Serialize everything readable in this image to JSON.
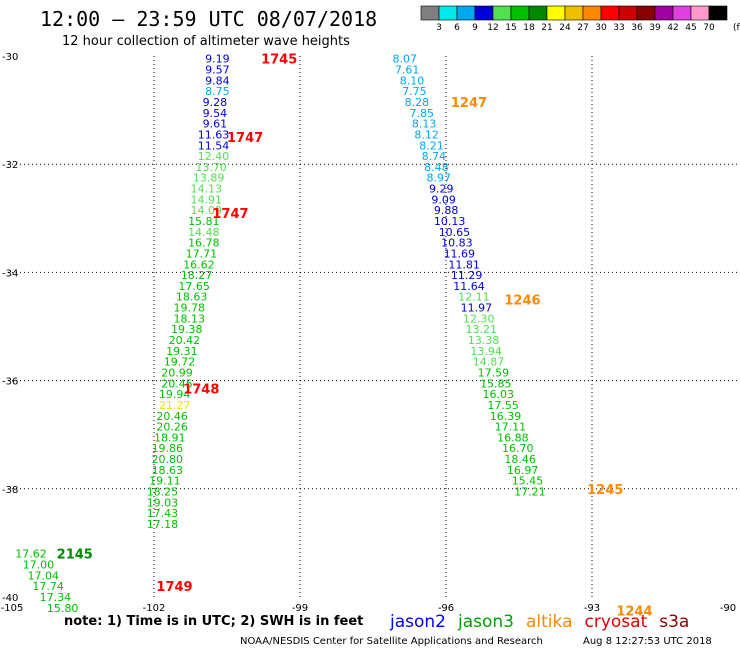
{
  "header": {
    "title": "12:00 – 23:59 UTC 08/07/2018",
    "subtitle": "12 hour collection of altimeter wave heights"
  },
  "legend": {
    "unit": "(ft)",
    "bins": [
      {
        "label": "3",
        "color": "#808080"
      },
      {
        "label": "6",
        "color": "#00e8e8"
      },
      {
        "label": "9",
        "color": "#00a8f0"
      },
      {
        "label": "12",
        "color": "#0000d8"
      },
      {
        "label": "15",
        "color": "#50e050"
      },
      {
        "label": "18",
        "color": "#00c000"
      },
      {
        "label": "21",
        "color": "#008800"
      },
      {
        "label": "24",
        "color": "#ffff00"
      },
      {
        "label": "27",
        "color": "#f0c000"
      },
      {
        "label": "30",
        "color": "#ff8800"
      },
      {
        "label": "33",
        "color": "#ff0000"
      },
      {
        "label": "36",
        "color": "#cc0000"
      },
      {
        "label": "39",
        "color": "#880000"
      },
      {
        "label": "42",
        "color": "#a000a0"
      },
      {
        "label": "45",
        "color": "#e040e0"
      },
      {
        "label": "70",
        "color": "#ff99cc"
      },
      {
        "label": "",
        "color": "#000000"
      }
    ]
  },
  "footer": {
    "note": "note: 1) Time is in UTC; 2) SWH is in feet",
    "satellites": [
      {
        "name": "jason2",
        "color": "#0000ff"
      },
      {
        "name": "jason3",
        "color": "#00a000"
      },
      {
        "name": "altika",
        "color": "#ff8800"
      },
      {
        "name": "cryosat",
        "color": "#e00000"
      },
      {
        "name": "s3a",
        "color": "#8b0000"
      }
    ],
    "credit": "NOAA/NESDIS Center for Satellite Applications and Research",
    "timestamp": "Aug  8 12:27:53 UTC 2018"
  },
  "chart_data": {
    "type": "scatter",
    "title": "12:00 – 23:59 UTC 08/07/2018",
    "subtitle": "12 hour collection of altimeter wave heights",
    "x_ticks": [
      "-105",
      "-102",
      "-99",
      "-96",
      "-93",
      "-90"
    ],
    "y_ticks": [
      "-30",
      "-32",
      "-34",
      "-36",
      "-38",
      "-40"
    ],
    "xlim": [
      -105,
      -90
    ],
    "ylim": [
      -40,
      -30
    ],
    "grid": true,
    "colors": {
      "gray": "#808080",
      "cyan": "#00d0d0",
      "sky": "#00a8f0",
      "blue": "#0000d8",
      "lgreen": "#50e050",
      "green": "#00c000",
      "dgreen": "#008800",
      "yellow": "#e8e800",
      "gold": "#f0c000",
      "orange": "#ff8800",
      "red": "#ff0000"
    },
    "time_labels": [
      {
        "text": "1745",
        "lon": -99.8,
        "lat": -30.05,
        "color": "#ff0000"
      },
      {
        "text": "1747",
        "lon": -100.5,
        "lat": -31.5,
        "color": "#ff0000"
      },
      {
        "text": "1747",
        "lon": -100.8,
        "lat": -32.9,
        "color": "#ff0000"
      },
      {
        "text": "1748",
        "lon": -101.4,
        "lat": -36.15,
        "color": "#ff0000"
      },
      {
        "text": "1749",
        "lon": -101.95,
        "lat": -39.8,
        "color": "#ff0000"
      },
      {
        "text": "2145",
        "lon": -104.0,
        "lat": -39.2,
        "color": "#008800"
      },
      {
        "text": "1247",
        "lon": -95.9,
        "lat": -30.85,
        "color": "#ff8800"
      },
      {
        "text": "1246",
        "lon": -94.8,
        "lat": -34.5,
        "color": "#ff8800"
      },
      {
        "text": "1245",
        "lon": -93.1,
        "lat": -38.0,
        "color": "#ff8800"
      },
      {
        "text": "1244",
        "lon": -92.5,
        "lat": -40.25,
        "color": "#ff8800"
      }
    ],
    "series": [
      {
        "points": [
          {
            "v": "9.19",
            "lon": -100.95,
            "lat": -30.05,
            "c": "blue"
          },
          {
            "v": "9.57",
            "lon": -100.95,
            "lat": -30.25,
            "c": "blue"
          },
          {
            "v": "9.84",
            "lon": -100.95,
            "lat": -30.45,
            "c": "blue"
          },
          {
            "v": "8.75",
            "lon": -100.95,
            "lat": -30.65,
            "c": "sky"
          },
          {
            "v": "9.28",
            "lon": -101.0,
            "lat": -30.85,
            "c": "blue"
          },
          {
            "v": "9.54",
            "lon": -101.0,
            "lat": -31.05,
            "c": "blue"
          },
          {
            "v": "9.61",
            "lon": -101.0,
            "lat": -31.25,
            "c": "blue"
          },
          {
            "v": "11.63",
            "lon": -101.1,
            "lat": -31.45,
            "c": "blue"
          },
          {
            "v": "11.54",
            "lon": -101.1,
            "lat": -31.65,
            "c": "blue"
          },
          {
            "v": "12.40",
            "lon": -101.1,
            "lat": -31.85,
            "c": "lgreen"
          },
          {
            "v": "13.70",
            "lon": -101.15,
            "lat": -32.05,
            "c": "lgreen"
          },
          {
            "v": "13.89",
            "lon": -101.2,
            "lat": -32.25,
            "c": "lgreen"
          },
          {
            "v": "14.13",
            "lon": -101.25,
            "lat": -32.45,
            "c": "lgreen"
          },
          {
            "v": "14.91",
            "lon": -101.25,
            "lat": -32.65,
            "c": "lgreen"
          },
          {
            "v": "14.09",
            "lon": -101.25,
            "lat": -32.85,
            "c": "lgreen"
          },
          {
            "v": "15.81",
            "lon": -101.3,
            "lat": -33.05,
            "c": "green"
          },
          {
            "v": "14.48",
            "lon": -101.3,
            "lat": -33.25,
            "c": "lgreen"
          },
          {
            "v": "16.78",
            "lon": -101.3,
            "lat": -33.45,
            "c": "green"
          },
          {
            "v": "17.71",
            "lon": -101.35,
            "lat": -33.65,
            "c": "green"
          },
          {
            "v": "16.62",
            "lon": -101.4,
            "lat": -33.85,
            "c": "green"
          },
          {
            "v": "18.27",
            "lon": -101.45,
            "lat": -34.05,
            "c": "green"
          },
          {
            "v": "17.65",
            "lon": -101.5,
            "lat": -34.25,
            "c": "green"
          },
          {
            "v": "18.63",
            "lon": -101.55,
            "lat": -34.45,
            "c": "green"
          },
          {
            "v": "19.78",
            "lon": -101.6,
            "lat": -34.65,
            "c": "green"
          },
          {
            "v": "18.13",
            "lon": -101.6,
            "lat": -34.85,
            "c": "green"
          },
          {
            "v": "19.38",
            "lon": -101.65,
            "lat": -35.05,
            "c": "green"
          },
          {
            "v": "20.42",
            "lon": -101.7,
            "lat": -35.25,
            "c": "green"
          },
          {
            "v": "19.31",
            "lon": -101.75,
            "lat": -35.45,
            "c": "green"
          },
          {
            "v": "19.72",
            "lon": -101.8,
            "lat": -35.65,
            "c": "green"
          },
          {
            "v": "20.99",
            "lon": -101.85,
            "lat": -35.85,
            "c": "green"
          },
          {
            "v": "20.45",
            "lon": -101.85,
            "lat": -36.05,
            "c": "green"
          },
          {
            "v": "19.94",
            "lon": -101.9,
            "lat": -36.25,
            "c": "green"
          },
          {
            "v": "21.27",
            "lon": -101.9,
            "lat": -36.45,
            "c": "yellow"
          },
          {
            "v": "20.46",
            "lon": -101.95,
            "lat": -36.65,
            "c": "green"
          },
          {
            "v": "20.26",
            "lon": -101.95,
            "lat": -36.85,
            "c": "green"
          },
          {
            "v": "18.91",
            "lon": -102.0,
            "lat": -37.05,
            "c": "green"
          },
          {
            "v": "19.86",
            "lon": -102.05,
            "lat": -37.25,
            "c": "green"
          },
          {
            "v": "20.80",
            "lon": -102.05,
            "lat": -37.45,
            "c": "green"
          },
          {
            "v": "18.63",
            "lon": -102.05,
            "lat": -37.65,
            "c": "green"
          },
          {
            "v": "19.11",
            "lon": -102.1,
            "lat": -37.85,
            "c": "green"
          },
          {
            "v": "18.25",
            "lon": -102.15,
            "lat": -38.05,
            "c": "green"
          },
          {
            "v": "19.03",
            "lon": -102.15,
            "lat": -38.25,
            "c": "green"
          },
          {
            "v": "17.43",
            "lon": -102.15,
            "lat": -38.45,
            "c": "green"
          },
          {
            "v": "17.18",
            "lon": -102.15,
            "lat": -38.65,
            "c": "green"
          }
        ]
      },
      {
        "points": [
          {
            "v": "17.62",
            "lon": -104.85,
            "lat": -39.2,
            "c": "green"
          },
          {
            "v": "17.00",
            "lon": -104.7,
            "lat": -39.4,
            "c": "green"
          },
          {
            "v": "17.04",
            "lon": -104.6,
            "lat": -39.6,
            "c": "green"
          },
          {
            "v": "17.74",
            "lon": -104.5,
            "lat": -39.8,
            "c": "green"
          },
          {
            "v": "17.34",
            "lon": -104.35,
            "lat": -40.0,
            "c": "green"
          },
          {
            "v": "15.80",
            "lon": -104.2,
            "lat": -40.2,
            "c": "green"
          }
        ]
      },
      {
        "points": [
          {
            "v": "8.07",
            "lon": -97.1,
            "lat": -30.05,
            "c": "sky"
          },
          {
            "v": "7.61",
            "lon": -97.05,
            "lat": -30.25,
            "c": "sky"
          },
          {
            "v": "8.10",
            "lon": -96.95,
            "lat": -30.45,
            "c": "sky"
          },
          {
            "v": "7.75",
            "lon": -96.9,
            "lat": -30.65,
            "c": "sky"
          },
          {
            "v": "8.28",
            "lon": -96.85,
            "lat": -30.85,
            "c": "sky"
          },
          {
            "v": "7.85",
            "lon": -96.75,
            "lat": -31.05,
            "c": "sky"
          },
          {
            "v": "8.13",
            "lon": -96.7,
            "lat": -31.25,
            "c": "sky"
          },
          {
            "v": "8.12",
            "lon": -96.65,
            "lat": -31.45,
            "c": "sky"
          },
          {
            "v": "8.21",
            "lon": -96.55,
            "lat": -31.65,
            "c": "sky"
          },
          {
            "v": "8.74",
            "lon": -96.5,
            "lat": -31.85,
            "c": "sky"
          },
          {
            "v": "8.48",
            "lon": -96.45,
            "lat": -32.05,
            "c": "sky"
          },
          {
            "v": "8.97",
            "lon": -96.4,
            "lat": -32.25,
            "c": "sky"
          },
          {
            "v": "9.29",
            "lon": -96.35,
            "lat": -32.45,
            "c": "blue"
          },
          {
            "v": "9.09",
            "lon": -96.3,
            "lat": -32.65,
            "c": "blue"
          },
          {
            "v": "9.88",
            "lon": -96.25,
            "lat": -32.85,
            "c": "blue"
          },
          {
            "v": "10.13",
            "lon": -96.25,
            "lat": -33.05,
            "c": "blue"
          },
          {
            "v": "10.65",
            "lon": -96.15,
            "lat": -33.25,
            "c": "blue"
          },
          {
            "v": "10.83",
            "lon": -96.1,
            "lat": -33.45,
            "c": "blue"
          },
          {
            "v": "11.69",
            "lon": -96.05,
            "lat": -33.65,
            "c": "blue"
          },
          {
            "v": "11.81",
            "lon": -95.95,
            "lat": -33.85,
            "c": "blue"
          },
          {
            "v": "11.29",
            "lon": -95.9,
            "lat": -34.05,
            "c": "blue"
          },
          {
            "v": "11.64",
            "lon": -95.85,
            "lat": -34.25,
            "c": "blue"
          },
          {
            "v": "12.11",
            "lon": -95.75,
            "lat": -34.45,
            "c": "lgreen"
          },
          {
            "v": "11.97",
            "lon": -95.7,
            "lat": -34.65,
            "c": "blue"
          },
          {
            "v": "12.30",
            "lon": -95.65,
            "lat": -34.85,
            "c": "lgreen"
          },
          {
            "v": "13.21",
            "lon": -95.6,
            "lat": -35.05,
            "c": "lgreen"
          },
          {
            "v": "13.38",
            "lon": -95.55,
            "lat": -35.25,
            "c": "lgreen"
          },
          {
            "v": "13.94",
            "lon": -95.5,
            "lat": -35.45,
            "c": "lgreen"
          },
          {
            "v": "14.87",
            "lon": -95.45,
            "lat": -35.65,
            "c": "lgreen"
          },
          {
            "v": "17.59",
            "lon": -95.35,
            "lat": -35.85,
            "c": "green"
          },
          {
            "v": "15.85",
            "lon": -95.3,
            "lat": -36.05,
            "c": "green"
          },
          {
            "v": "16.03",
            "lon": -95.25,
            "lat": -36.25,
            "c": "green"
          },
          {
            "v": "17.55",
            "lon": -95.15,
            "lat": -36.45,
            "c": "green"
          },
          {
            "v": "16.39",
            "lon": -95.1,
            "lat": -36.65,
            "c": "green"
          },
          {
            "v": "17.11",
            "lon": -95.0,
            "lat": -36.85,
            "c": "green"
          },
          {
            "v": "16.88",
            "lon": -94.95,
            "lat": -37.05,
            "c": "green"
          },
          {
            "v": "16.70",
            "lon": -94.85,
            "lat": -37.25,
            "c": "green"
          },
          {
            "v": "18.46",
            "lon": -94.8,
            "lat": -37.45,
            "c": "green"
          },
          {
            "v": "16.97",
            "lon": -94.75,
            "lat": -37.65,
            "c": "green"
          },
          {
            "v": "15.45",
            "lon": -94.65,
            "lat": -37.85,
            "c": "green"
          },
          {
            "v": "17.21",
            "lon": -94.6,
            "lat": -38.05,
            "c": "green"
          }
        ]
      }
    ]
  }
}
